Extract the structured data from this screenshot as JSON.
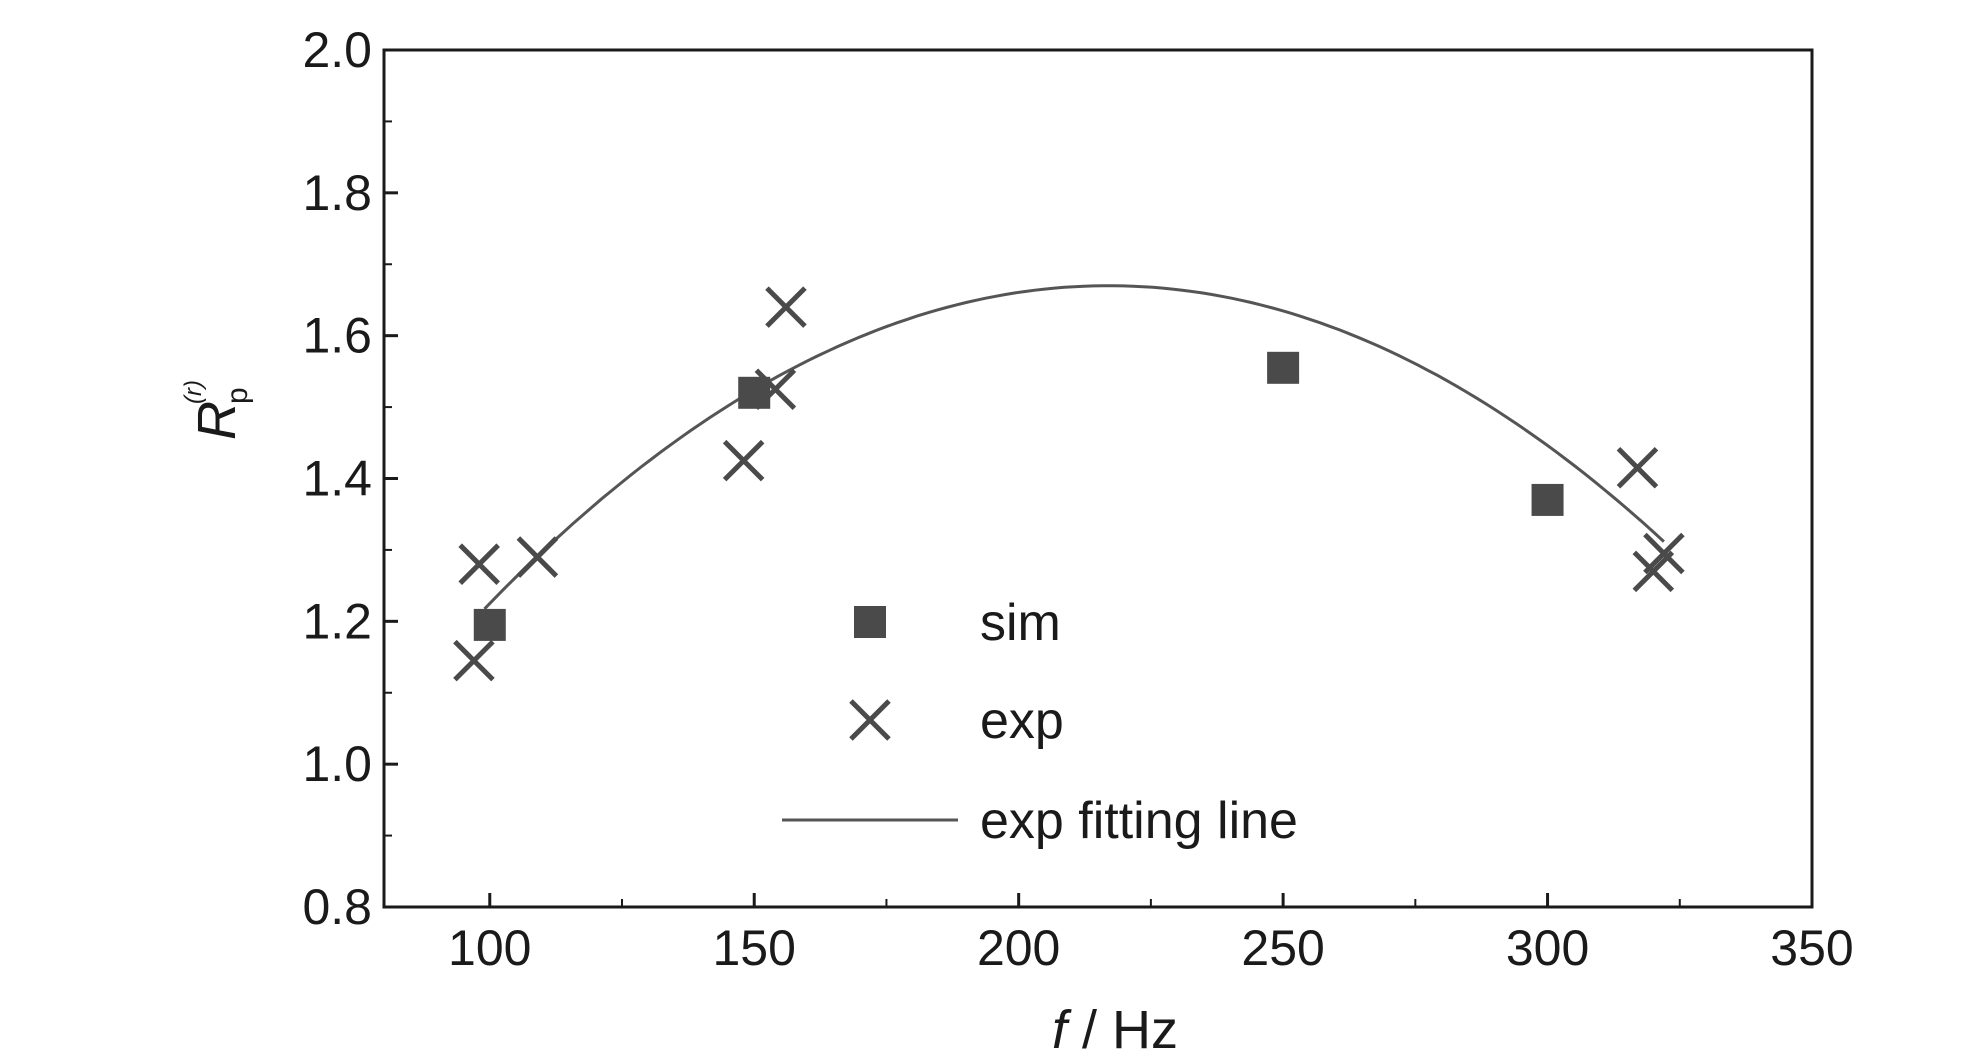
{
  "chart_data": {
    "type": "scatter",
    "title": "",
    "xlabel": {
      "var": "f",
      "unit": " / Hz"
    },
    "ylabel": {
      "main": "R",
      "sub": "p",
      "sup": "(r)"
    },
    "xlim": [
      80,
      350
    ],
    "ylim": [
      0.8,
      2.0
    ],
    "xticks": [
      100,
      150,
      200,
      250,
      300,
      350
    ],
    "xtick_labels": [
      "100",
      "150",
      "200",
      "250",
      "300",
      "350"
    ],
    "yticks": [
      0.8,
      1.0,
      1.2,
      1.4,
      1.6,
      1.8,
      2.0
    ],
    "ytick_labels": [
      "0.8",
      "1.0",
      "1.2",
      "1.4",
      "1.6",
      "1.8",
      "2.0"
    ],
    "grid": false,
    "legend_position": "bottom-center",
    "marker_color": "#4a4a4a",
    "line_color": "#555555",
    "series": [
      {
        "name": "sim",
        "marker": "square",
        "points": [
          {
            "x": 100,
            "y": 1.195
          },
          {
            "x": 150,
            "y": 1.52
          },
          {
            "x": 250,
            "y": 1.555
          },
          {
            "x": 300,
            "y": 1.37
          }
        ]
      },
      {
        "name": "exp",
        "marker": "x",
        "points": [
          {
            "x": 98,
            "y": 1.28
          },
          {
            "x": 97,
            "y": 1.145
          },
          {
            "x": 109,
            "y": 1.29
          },
          {
            "x": 148,
            "y": 1.425
          },
          {
            "x": 154,
            "y": 1.525
          },
          {
            "x": 156,
            "y": 1.64
          },
          {
            "x": 317,
            "y": 1.415
          },
          {
            "x": 320,
            "y": 1.27
          },
          {
            "x": 322,
            "y": 1.295
          }
        ]
      },
      {
        "name": "exp fitting line",
        "marker": "line",
        "curve": {
          "form": "quadratic",
          "x_range": [
            99,
            322
          ],
          "vertex_x": 217,
          "vertex_y": 1.67,
          "a": -3.25e-05
        }
      }
    ]
  }
}
